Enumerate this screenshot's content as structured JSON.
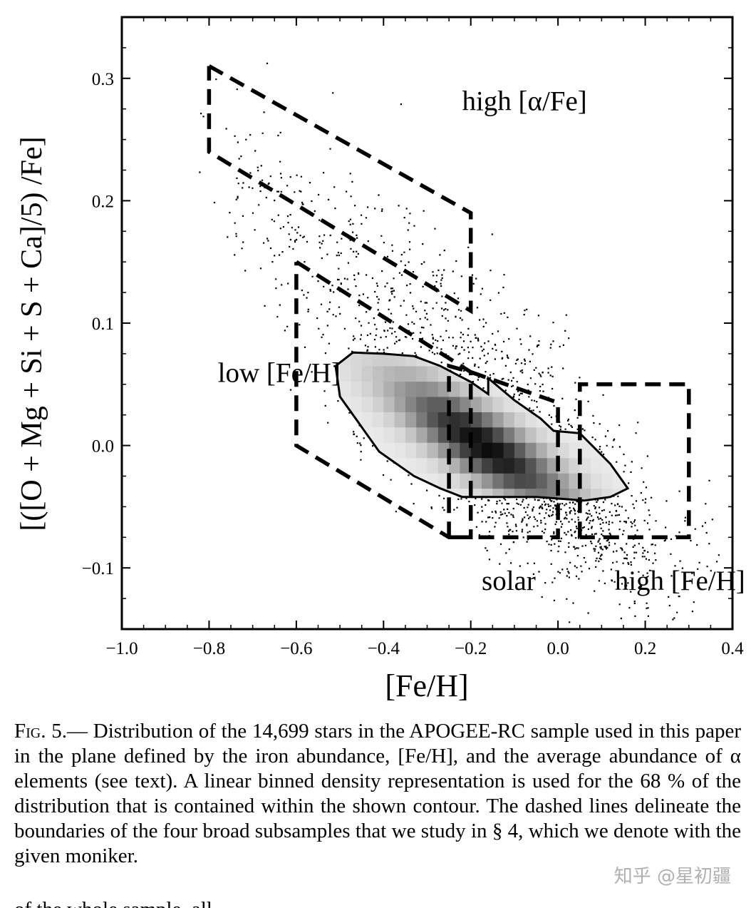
{
  "chart_data": {
    "type": "scatter",
    "xlabel": "[Fe/H]",
    "ylabel": "[([O + Mg + Si + S + Ca]/5) /Fe]",
    "xlim": [
      -1.0,
      0.4
    ],
    "ylim": [
      -0.15,
      0.35
    ],
    "xticks": [
      -1.0,
      -0.8,
      -0.6,
      -0.4,
      -0.2,
      0.0,
      0.2,
      0.4
    ],
    "xtick_labels": [
      "−1.0",
      "−0.8",
      "−0.6",
      "−0.4",
      "−0.2",
      "0.0",
      "0.2",
      "0.4"
    ],
    "yticks": [
      -0.1,
      0.0,
      0.1,
      0.2,
      0.3
    ],
    "ytick_labels": [
      "−0.1",
      "0.0",
      "0.1",
      "0.2",
      "0.3"
    ],
    "n_stars": 14699,
    "density_contour_fraction": 0.68,
    "contour": [
      [
        -0.51,
        0.065
      ],
      [
        -0.47,
        0.076
      ],
      [
        -0.4,
        0.075
      ],
      [
        -0.33,
        0.073
      ],
      [
        -0.27,
        0.065
      ],
      [
        -0.2,
        0.052
      ],
      [
        -0.16,
        0.042
      ],
      [
        -0.16,
        0.055
      ],
      [
        -0.1,
        0.037
      ],
      [
        -0.04,
        0.022
      ],
      [
        -0.01,
        0.012
      ],
      [
        0.05,
        0.01
      ],
      [
        0.12,
        -0.015
      ],
      [
        0.16,
        -0.035
      ],
      [
        0.12,
        -0.042
      ],
      [
        0.06,
        -0.045
      ],
      [
        -0.05,
        -0.042
      ],
      [
        -0.15,
        -0.042
      ],
      [
        -0.22,
        -0.042
      ],
      [
        -0.27,
        -0.035
      ],
      [
        -0.33,
        -0.025
      ],
      [
        -0.41,
        -0.005
      ],
      [
        -0.46,
        0.02
      ],
      [
        -0.5,
        0.04
      ],
      [
        -0.51,
        0.065
      ]
    ],
    "density_peak": [
      -0.17,
      0.0
    ],
    "regions": [
      {
        "name": "high [α/Fe]",
        "boundary": [
          [
            -0.8,
            0.31
          ],
          [
            -0.2,
            0.19
          ],
          [
            -0.2,
            0.11
          ],
          [
            -0.8,
            0.24
          ],
          [
            -0.8,
            0.31
          ]
        ]
      },
      {
        "name": "low [Fe/H]",
        "boundary": [
          [
            -0.6,
            0.15
          ],
          [
            -0.2,
            0.06
          ],
          [
            -0.2,
            -0.075
          ],
          [
            -0.25,
            -0.075
          ],
          [
            -0.6,
            0.0
          ],
          [
            -0.6,
            0.15
          ]
        ]
      },
      {
        "name": "solar",
        "boundary": [
          [
            -0.25,
            -0.075
          ],
          [
            -0.25,
            0.065
          ],
          [
            -0.2,
            0.06
          ],
          [
            0.0,
            0.035
          ],
          [
            0.0,
            -0.075
          ],
          [
            -0.25,
            -0.075
          ]
        ]
      },
      {
        "name": "high [Fe/H]",
        "boundary": [
          [
            0.05,
            -0.075
          ],
          [
            0.05,
            0.05
          ],
          [
            0.3,
            0.05
          ],
          [
            0.3,
            -0.075
          ],
          [
            0.05,
            -0.075
          ]
        ]
      }
    ],
    "annotations": [
      {
        "text": "high [α/Fe]",
        "x": -0.22,
        "y": 0.274
      },
      {
        "text": "low [Fe/H]",
        "x": -0.78,
        "y": 0.052
      },
      {
        "text": "solar",
        "x": -0.175,
        "y": -0.118
      },
      {
        "text": "high [Fe/H]",
        "x": 0.13,
        "y": -0.118
      }
    ]
  },
  "caption": {
    "label": "Fig. 5.—",
    "text": "Distribution of the 14,699 stars in the APOGEE-RC sample used in this paper in the plane defined by the iron abundance, [Fe/H], and the average abundance of α elements (see text). A linear binned density representation is used for the 68 % of the distribution that is contained within the shown contour. The dashed lines delineate the boundaries of the four broad subsamples that we study in § 4, which we denote with the given moniker."
  },
  "watermark": "知乎 @星初疆",
  "cut_line": "of the whole sample, all"
}
